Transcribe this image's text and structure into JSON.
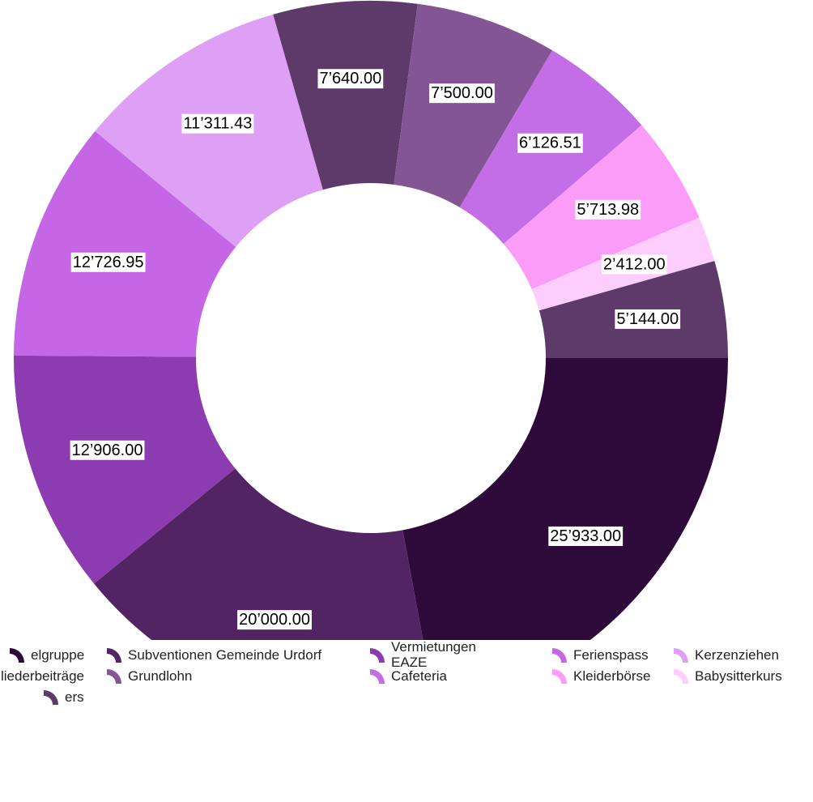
{
  "chart_data": {
    "type": "donut",
    "categories": [
      "elgruppe",
      "Subventionen Gemeinde Urdorf",
      "Vermietungen EAZE",
      "Ferienspass",
      "Kerzenziehen",
      "liederbeiträge",
      "Grundlohn",
      "Cafeteria",
      "Kleiderbörse",
      "Babysitterkurs",
      "ers"
    ],
    "values": [
      25933,
      20000,
      12906,
      12726.95,
      11311.43,
      7640,
      7500,
      6126.51,
      5713.98,
      2412,
      5144
    ],
    "value_labels": [
      "25’933.00",
      "20’000.00",
      "12’906.00",
      "12’726.95",
      "11’311.43",
      "7’640.00",
      "7’500.00",
      "6’126.51",
      "5’713.98",
      "2’412.00",
      "5’144.00"
    ],
    "colors": [
      "#2e0a3a",
      "#532463",
      "#8d3bb0",
      "#c566e6",
      "#dea0f5",
      "#5e3a6a",
      "#845595",
      "#c36de6",
      "#fb9cf9",
      "#fdcdfd",
      "#5e3a6a"
    ],
    "legend": "bottom"
  }
}
